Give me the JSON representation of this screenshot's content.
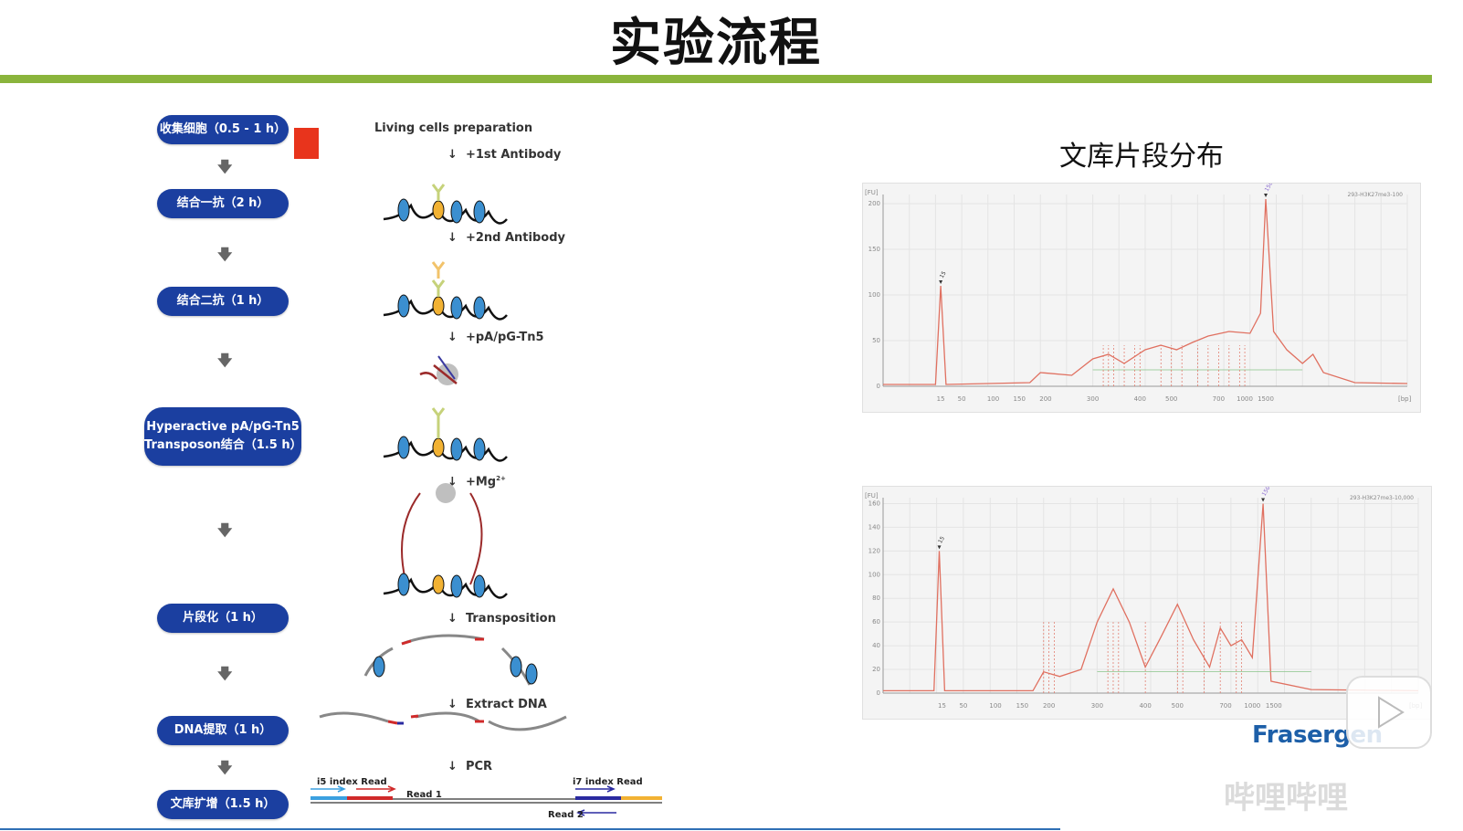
{
  "title": "实验流程",
  "flow_steps": [
    {
      "label": "收集细胞（0.5 - 1 h）"
    },
    {
      "label": "结合一抗（2 h）"
    },
    {
      "label": "结合二抗（1 h）"
    },
    {
      "label_line1": "Hyperactive pA/pG-Tn5",
      "label_line2": "Transposon结合（1.5 h）"
    },
    {
      "label": "片段化（1 h）"
    },
    {
      "label": "DNA提取（1 h）"
    },
    {
      "label": "文库扩增（1.5 h）"
    }
  ],
  "diagram_steps": {
    "prep": "Living cells preparation",
    "s1": "+1st  Antibody",
    "s2": "+2nd  Antibody",
    "s3": "+pA/pG-Tn5",
    "s4": "+Mg",
    "s4_sup": "2+",
    "s5": "Transposition",
    "s6": "Extract DNA",
    "s7": "PCR"
  },
  "reads": {
    "i5": "i5 index Read",
    "read1": "Read 1",
    "i7": "i7 index Read",
    "read2": "Read 2"
  },
  "panel_title": "文库片段分布",
  "logo": "Frasergen",
  "watermark": "哔哩哔哩",
  "colors": {
    "accent_green": "#8ab43c",
    "pill_blue": "#1b3fa0",
    "red": "#e8341c",
    "trace": "#e07060"
  },
  "chart_data": [
    {
      "type": "line",
      "sample": "293-H3K27me3-100",
      "yunit": "[FU]",
      "xunit": "[bp]",
      "yticks": [
        "0",
        "50",
        "100",
        "150",
        "200"
      ],
      "xticks": [
        "15",
        "50",
        "100",
        "150",
        "200",
        "300",
        "400",
        "500",
        "700",
        "1000",
        "1500"
      ],
      "ylim": [
        0,
        210
      ],
      "peaks": [
        {
          "x": 15,
          "y": 110,
          "label": "15"
        },
        {
          "x": 1500,
          "y": 205,
          "label": "1500"
        }
      ]
    },
    {
      "type": "line",
      "sample": "293-H3K27me3-10,000",
      "yunit": "[FU]",
      "xunit": "[bp]",
      "yticks": [
        "0",
        "20",
        "40",
        "60",
        "80",
        "100",
        "120",
        "140",
        "160"
      ],
      "xticks": [
        "15",
        "50",
        "100",
        "150",
        "200",
        "300",
        "400",
        "500",
        "700",
        "1000",
        "1500"
      ],
      "ylim": [
        0,
        165
      ],
      "peaks": [
        {
          "x": 15,
          "y": 120,
          "label": "15"
        },
        {
          "x": 1500,
          "y": 160,
          "label": "1500"
        }
      ]
    }
  ]
}
